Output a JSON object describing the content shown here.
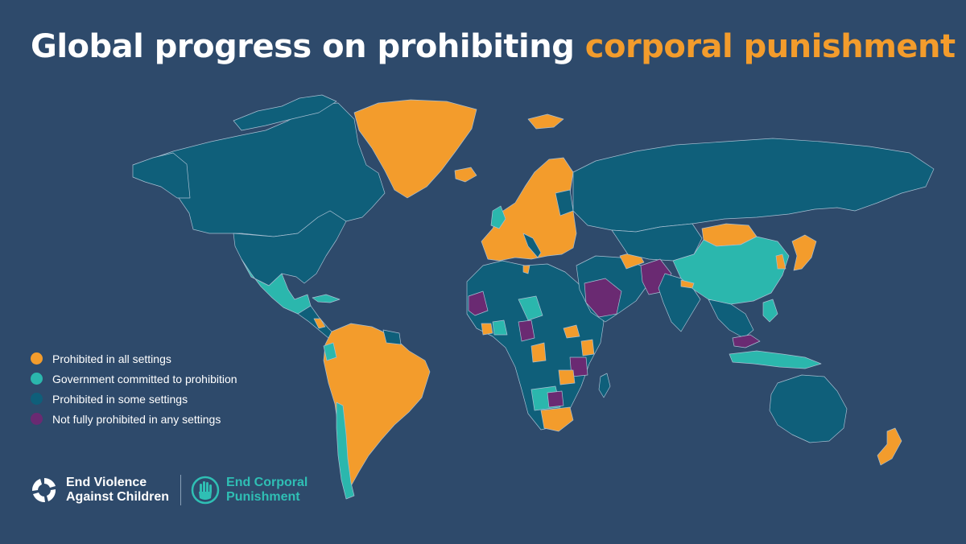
{
  "title": {
    "part1": "Global progress on prohibiting ",
    "highlight": "corporal punishment"
  },
  "colors": {
    "background": "#2e4a6b",
    "all_settings": "#f39c2c",
    "committed": "#2bb7ad",
    "some_settings": "#0f5f7a",
    "none": "#6a2a72",
    "border": "#a7bfd2"
  },
  "legend": [
    {
      "label": "Prohibited in all settings",
      "color": "#f39c2c"
    },
    {
      "label": "Government committed to prohibition",
      "color": "#2bb7ad"
    },
    {
      "label": "Prohibited in some settings",
      "color": "#0f5f7a"
    },
    {
      "label": "Not fully prohibited in any settings",
      "color": "#6a2a72"
    }
  ],
  "logos": {
    "evac": {
      "line1": "End Violence",
      "line2": "Against Children",
      "icon": "evac-logo-icon"
    },
    "ecp": {
      "line1": "End Corporal",
      "line2": "Punishment",
      "icon": "hand-logo-icon"
    }
  },
  "map": {
    "categories": [
      "all_settings",
      "committed",
      "some_settings",
      "none"
    ]
  }
}
